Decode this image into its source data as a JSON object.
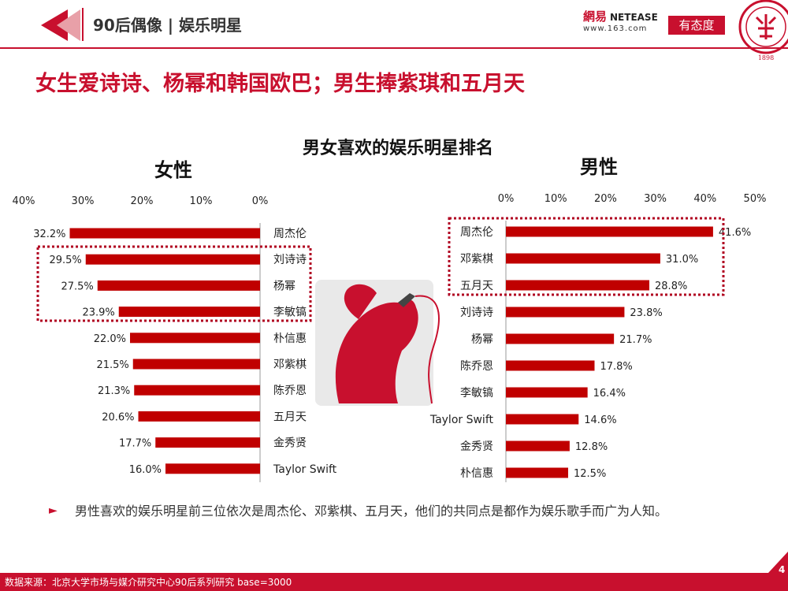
{
  "header": {
    "section_title": "90后偶像 | 娱乐明星",
    "netease_cn": "網易",
    "netease_en": "NETEASE",
    "netease_url": "www.163.com",
    "youtaidu": "有态度",
    "seal_char": "北大",
    "seal_year": "1898"
  },
  "headline": "女生爱诗诗、杨幂和韩国欧巴；男生捧紫琪和五月天",
  "chart_heading": "男女喜欢的娱乐明星排名",
  "colors": {
    "bar": "#c00000",
    "accent": "#c8102e",
    "footer": "#c8102e"
  },
  "chart_data": [
    {
      "type": "bar",
      "orientation": "horizontal",
      "direction": "right-to-left",
      "title": "女性",
      "xlim": [
        0,
        40
      ],
      "ticks": [
        "0%",
        "10%",
        "20%",
        "30%",
        "40%"
      ],
      "categories": [
        "周杰伦",
        "刘诗诗",
        "杨幂",
        "李敏镐",
        "朴信惠",
        "邓紫棋",
        "陈乔恩",
        "五月天",
        "金秀贤",
        "Taylor Swift"
      ],
      "values": [
        32.2,
        29.5,
        27.5,
        23.9,
        22.0,
        21.5,
        21.3,
        20.6,
        17.7,
        16.0
      ],
      "labels": [
        "32.2%",
        "29.5%",
        "27.5%",
        "23.9%",
        "22.0%",
        "21.5%",
        "21.3%",
        "20.6%",
        "17.7%",
        "16.0%"
      ],
      "highlighted": [
        "刘诗诗",
        "杨幂",
        "李敏镐"
      ]
    },
    {
      "type": "bar",
      "orientation": "horizontal",
      "direction": "left-to-right",
      "title": "男性",
      "xlim": [
        0,
        50
      ],
      "ticks": [
        "0%",
        "10%",
        "20%",
        "30%",
        "40%",
        "50%"
      ],
      "categories": [
        "周杰伦",
        "邓紫棋",
        "五月天",
        "刘诗诗",
        "杨幂",
        "陈乔恩",
        "李敏镐",
        "Taylor Swift",
        "金秀贤",
        "朴信惠"
      ],
      "values": [
        41.6,
        31.0,
        28.8,
        23.8,
        21.7,
        17.8,
        16.4,
        14.6,
        12.8,
        12.5
      ],
      "labels": [
        "41.6%",
        "31.0%",
        "28.8%",
        "23.8%",
        "21.7%",
        "17.8%",
        "16.4%",
        "14.6%",
        "12.8%",
        "12.5%"
      ],
      "highlighted": [
        "周杰伦",
        "邓紫棋",
        "五月天"
      ]
    }
  ],
  "note": "男性喜欢的娱乐明星前三位依次是周杰伦、邓紫棋、五月天，他们的共同点是都作为娱乐歌手而广为人知。",
  "footer": "数据来源：北京大学市场与媒介研究中心90后系列研究 base=3000",
  "page_number": "4"
}
